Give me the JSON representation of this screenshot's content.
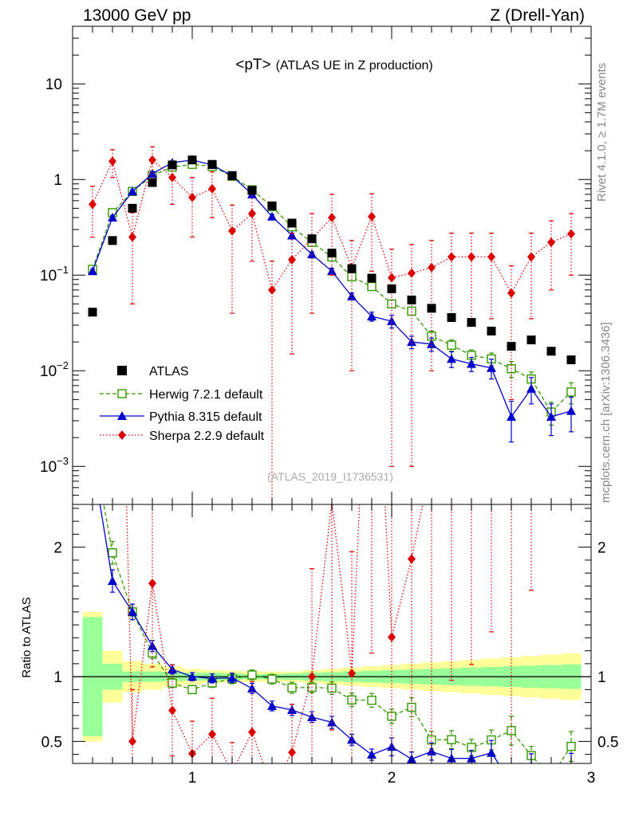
{
  "header": {
    "left": "13000 GeV pp",
    "right": "Z (Drell-Yan)"
  },
  "side": {
    "rivet": "Rivet 4.1.0, ≥ 1.7M events",
    "mcplots": "mcplots.cern.ch [arXiv:1306.3436]"
  },
  "chart_data": {
    "type": "scatter",
    "title_main": "<pT>",
    "title_sub": "(ATLAS UE in Z production)",
    "watermark": "(ATLAS_2019_I1736531)",
    "ratio_ylabel": "Ratio to ATLAS",
    "upper": {
      "yscale": "log",
      "ylim": [
        0.0004,
        40
      ],
      "yticks": [
        {
          "value": 10,
          "label": "10"
        },
        {
          "value": 1,
          "label": "1"
        },
        {
          "value": 0.1,
          "base": "10",
          "exp": "−1"
        },
        {
          "value": 0.01,
          "base": "10",
          "exp": "−2"
        },
        {
          "value": 0.001,
          "base": "10",
          "exp": "−3"
        }
      ]
    },
    "lower": {
      "ylim": [
        0.33,
        2.33
      ],
      "yticks": [
        {
          "value": 0.5,
          "label": "0.5"
        },
        {
          "value": 1,
          "label": "1"
        },
        {
          "value": 2,
          "label": "2"
        }
      ]
    },
    "xlim": [
      0.4,
      3.0
    ],
    "xticks": [
      {
        "value": 1,
        "label": "1"
      },
      {
        "value": 2,
        "label": "2"
      },
      {
        "value": 3,
        "label": "3"
      }
    ],
    "x": [
      0.5,
      0.6,
      0.7,
      0.8,
      0.9,
      1.0,
      1.1,
      1.2,
      1.3,
      1.4,
      1.5,
      1.6,
      1.7,
      1.8,
      1.9,
      2.0,
      2.1,
      2.2,
      2.3,
      2.4,
      2.5,
      2.6,
      2.7,
      2.8,
      2.9
    ],
    "data": {
      "name": "ATLAS",
      "values": [
        0.041,
        0.23,
        0.5,
        0.93,
        1.42,
        1.6,
        1.44,
        1.1,
        0.77,
        0.53,
        0.35,
        0.24,
        0.17,
        0.117,
        0.093,
        0.072,
        0.055,
        0.045,
        0.036,
        0.032,
        0.026,
        0.018,
        0.021,
        0.016,
        0.013
      ],
      "band_outer": [
        0.5,
        0.2,
        0.12,
        0.1,
        0.08,
        0.06,
        0.05,
        0.045,
        0.04,
        0.04,
        0.04,
        0.05,
        0.06,
        0.07,
        0.08,
        0.09,
        0.1,
        0.11,
        0.12,
        0.13,
        0.14,
        0.15,
        0.16,
        0.17,
        0.18
      ],
      "band_inner": [
        0.46,
        0.1,
        0.04,
        0.04,
        0.035,
        0.03,
        0.03,
        0.025,
        0.02,
        0.02,
        0.025,
        0.03,
        0.035,
        0.04,
        0.045,
        0.05,
        0.055,
        0.06,
        0.065,
        0.07,
        0.075,
        0.08,
        0.085,
        0.09,
        0.095
      ],
      "band_outer_color": "#ffff99",
      "band_inner_color": "#99ff99"
    },
    "series": [
      {
        "name": "Herwig 7.2.1 default",
        "color": "#339900",
        "marker": "open-square",
        "line": "dashed",
        "values": [
          0.115,
          0.45,
          0.75,
          1.1,
          1.35,
          1.44,
          1.37,
          1.08,
          0.78,
          0.52,
          0.32,
          0.22,
          0.155,
          0.096,
          0.076,
          0.05,
          0.042,
          0.023,
          0.0185,
          0.0145,
          0.0133,
          0.0105,
          0.0082,
          0.0037,
          0.006
        ],
        "errors": [
          0.005,
          0.02,
          0.03,
          0.04,
          0.05,
          0.05,
          0.05,
          0.04,
          0.03,
          0.02,
          0.015,
          0.01,
          0.008,
          0.006,
          0.005,
          0.004,
          0.004,
          0.003,
          0.0025,
          0.002,
          0.002,
          0.002,
          0.0015,
          0.001,
          0.0015
        ]
      },
      {
        "name": "Pythia 8.315 default",
        "color": "#0000cc",
        "marker": "triangle",
        "line": "solid",
        "values": [
          0.11,
          0.4,
          0.75,
          1.15,
          1.5,
          1.6,
          1.42,
          1.09,
          0.7,
          0.41,
          0.26,
          0.165,
          0.11,
          0.06,
          0.037,
          0.033,
          0.02,
          0.019,
          0.0133,
          0.0118,
          0.0107,
          0.0033,
          0.0065,
          0.0033,
          0.0038
        ],
        "errors": [
          0.005,
          0.02,
          0.03,
          0.04,
          0.05,
          0.05,
          0.05,
          0.04,
          0.03,
          0.02,
          0.015,
          0.01,
          0.008,
          0.005,
          0.004,
          0.005,
          0.003,
          0.003,
          0.0025,
          0.002,
          0.0025,
          0.0015,
          0.002,
          0.0012,
          0.0015
        ]
      },
      {
        "name": "Sherpa 2.2.9 default",
        "color": "#dd0000",
        "marker": "diamond",
        "line": "dotted",
        "values": [
          0.55,
          1.55,
          0.25,
          1.6,
          1.05,
          0.65,
          0.8,
          0.29,
          0.44,
          0.07,
          0.145,
          0.24,
          0.4,
          0.12,
          0.41,
          0.094,
          0.105,
          0.12,
          0.155,
          0.155,
          0.155,
          0.065,
          0.155,
          0.22,
          0.27
        ],
        "errors": [
          0.3,
          0.5,
          0.2,
          0.6,
          0.5,
          0.4,
          0.4,
          0.25,
          0.3,
          0.07,
          0.13,
          0.2,
          0.3,
          0.11,
          0.3,
          0.093,
          0.104,
          0.11,
          0.12,
          0.12,
          0.12,
          0.06,
          0.12,
          0.15,
          0.17
        ]
      }
    ]
  }
}
